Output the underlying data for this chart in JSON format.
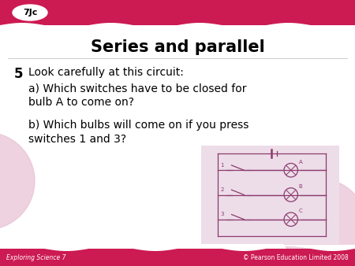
{
  "title": "Series and parallel",
  "header_color": "#cc1a52",
  "header_label": "7Jc",
  "bg_color": "#ffffff",
  "footer_left": "Exploring Science 7",
  "footer_right": "© Pearson Education Limited 2008",
  "question_number": "5",
  "question_text": "Look carefully at this circuit:",
  "part_a": "a) Which switches have to be closed for\nbulb A to come on?",
  "part_b": "b) Which bulbs will come on if you press\nswitches 1 and 3?",
  "circuit_bg": "#eddde8",
  "circuit_line": "#8b3a6e",
  "deco_circle_color": "#e8c0d4"
}
